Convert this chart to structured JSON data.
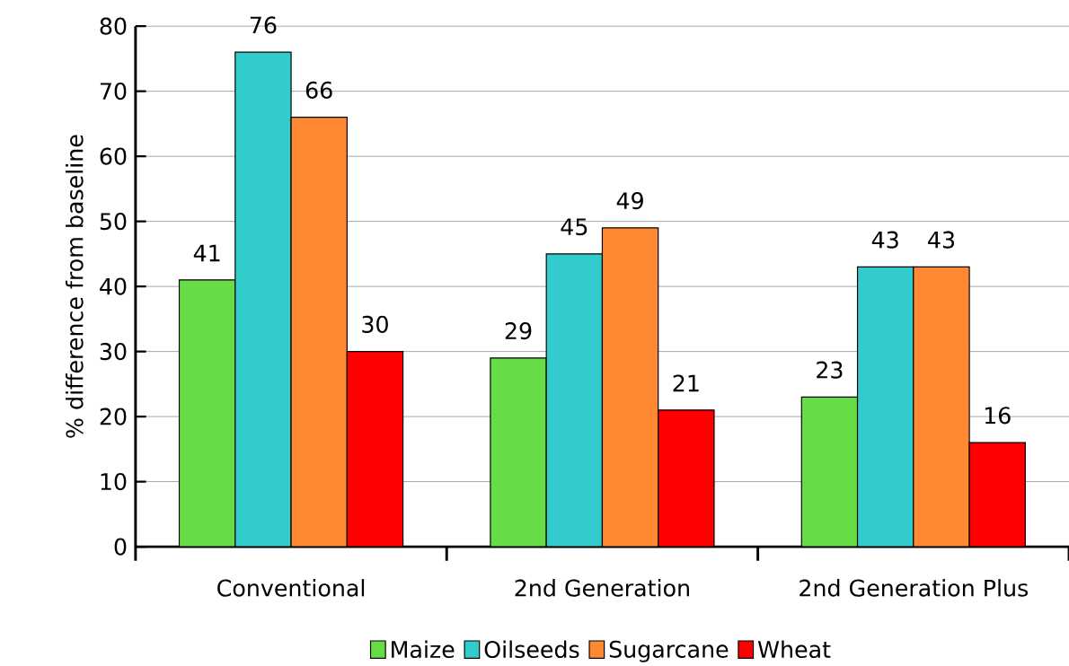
{
  "chart_data": {
    "type": "bar",
    "ylabel": "% difference from baseline",
    "categories": [
      "Conventional",
      "2nd Generation",
      "2nd Generation Plus"
    ],
    "series": [
      {
        "name": "Maize",
        "color": "#66dd44",
        "values": [
          41,
          29,
          23
        ]
      },
      {
        "name": "Oilseeds",
        "color": "#33cccc",
        "values": [
          76,
          45,
          43
        ]
      },
      {
        "name": "Sugarcane",
        "color": "#ff8833",
        "values": [
          66,
          49,
          43
        ]
      },
      {
        "name": "Wheat",
        "color": "#ff0000",
        "values": [
          30,
          21,
          16
        ]
      }
    ],
    "ylim": [
      0,
      80
    ],
    "yticks": [
      0,
      10,
      20,
      30,
      40,
      50,
      60,
      70,
      80
    ],
    "grid": "y",
    "legend": "bottom",
    "data_labels": true
  }
}
